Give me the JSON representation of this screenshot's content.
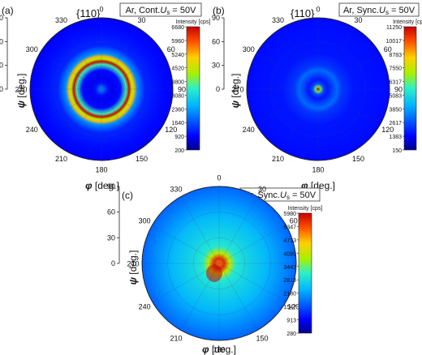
{
  "chart_data": [
    {
      "type": "heatmap",
      "panel_label": "(a)",
      "plane": "{110}",
      "condition": {
        "prefix": "Ar, Cont.",
        "var": "U",
        "sub": "s",
        "suffix": " = 50V"
      },
      "ylabel": {
        "sym": "ψ",
        "unit": " [deg.]"
      },
      "xlabel": {
        "sym": "φ",
        "unit": " [deg.]"
      },
      "psi_ticks": [
        "90",
        "60",
        "30",
        "0"
      ],
      "phi_ticks": [
        "0",
        "30",
        "60",
        "90",
        "120",
        "150",
        "180",
        "210",
        "240",
        "270",
        "300",
        "330"
      ],
      "colorbar": {
        "label": "Intensity [cps]",
        "ticks": [
          "6680",
          "5960",
          "5240",
          "4520",
          "3800",
          "3080",
          "2360",
          "1640",
          "920",
          "200"
        ]
      },
      "radial_profile": [
        {
          "psi": 0,
          "intensity": 2300
        },
        {
          "psi": 8,
          "intensity": 1000
        },
        {
          "psi": 14,
          "intensity": 820
        },
        {
          "psi": 24,
          "intensity": 1000
        },
        {
          "psi": 31,
          "intensity": 3500
        },
        {
          "psi": 35,
          "intensity": 6600
        },
        {
          "psi": 38,
          "intensity": 4200
        },
        {
          "psi": 41,
          "intensity": 5200
        },
        {
          "psi": 45,
          "intensity": 2200
        },
        {
          "psi": 55,
          "intensity": 1250
        },
        {
          "psi": 75,
          "intensity": 1000
        },
        {
          "psi": 90,
          "intensity": 900
        }
      ]
    },
    {
      "type": "heatmap",
      "panel_label": "(b)",
      "plane": "{110}",
      "condition": {
        "prefix": "Ar, Sync.",
        "var": "U",
        "sub": "s",
        "suffix": " = 50V"
      },
      "ylabel": {
        "sym": "ψ",
        "unit": " [deg.]"
      },
      "xlabel": {
        "sym": "φ",
        "unit": " [deg.]"
      },
      "psi_ticks": [
        "90",
        "60",
        "30",
        "0"
      ],
      "phi_ticks": [
        "0",
        "30",
        "60",
        "90",
        "120",
        "150",
        "180",
        "210",
        "240",
        "270",
        "300",
        "330"
      ],
      "colorbar": {
        "label": "Intensity [cps]",
        "ticks": [
          "11250",
          "10017",
          "8783",
          "7550",
          "6317",
          "5083",
          "3850",
          "2617",
          "1383",
          "150"
        ]
      },
      "radial_profile": [
        {
          "psi": 0,
          "intensity": 11000
        },
        {
          "psi": 3,
          "intensity": 6500
        },
        {
          "psi": 7,
          "intensity": 2500
        },
        {
          "psi": 12,
          "intensity": 1700
        },
        {
          "psi": 19,
          "intensity": 2500
        },
        {
          "psi": 24,
          "intensity": 3000
        },
        {
          "psi": 30,
          "intensity": 2200
        },
        {
          "psi": 45,
          "intensity": 1700
        },
        {
          "psi": 70,
          "intensity": 1600
        },
        {
          "psi": 90,
          "intensity": 1500
        }
      ]
    },
    {
      "type": "heatmap",
      "panel_label": "(c)",
      "plane": "{110}",
      "condition": {
        "prefix": "Kr, Sync.",
        "var": "U",
        "sub": "s",
        "suffix": " = 50V"
      },
      "ylabel": {
        "sym": "ψ",
        "unit": " [deg.]"
      },
      "xlabel": {
        "sym": "φ",
        "unit": " [deg.]"
      },
      "psi_ticks": [
        "90",
        "60",
        "30",
        "0"
      ],
      "phi_ticks": [
        "0",
        "30",
        "60",
        "90",
        "120",
        "150",
        "180",
        "210",
        "240",
        "270",
        "300",
        "330"
      ],
      "colorbar": {
        "label": "Intensity [cps]",
        "ticks": [
          "5980",
          "5347",
          "4713",
          "4080",
          "3447",
          "2813",
          "2180",
          "1547",
          "913",
          "280"
        ]
      },
      "radial_profile": [
        {
          "psi": 0,
          "intensity": 5000
        },
        {
          "psi": 6,
          "intensity": 5600
        },
        {
          "psi": 12,
          "intensity": 4000
        },
        {
          "psi": 20,
          "intensity": 3000
        },
        {
          "psi": 35,
          "intensity": 2700
        },
        {
          "psi": 55,
          "intensity": 2400
        },
        {
          "psi": 75,
          "intensity": 2000
        },
        {
          "psi": 90,
          "intensity": 1700
        }
      ]
    }
  ]
}
